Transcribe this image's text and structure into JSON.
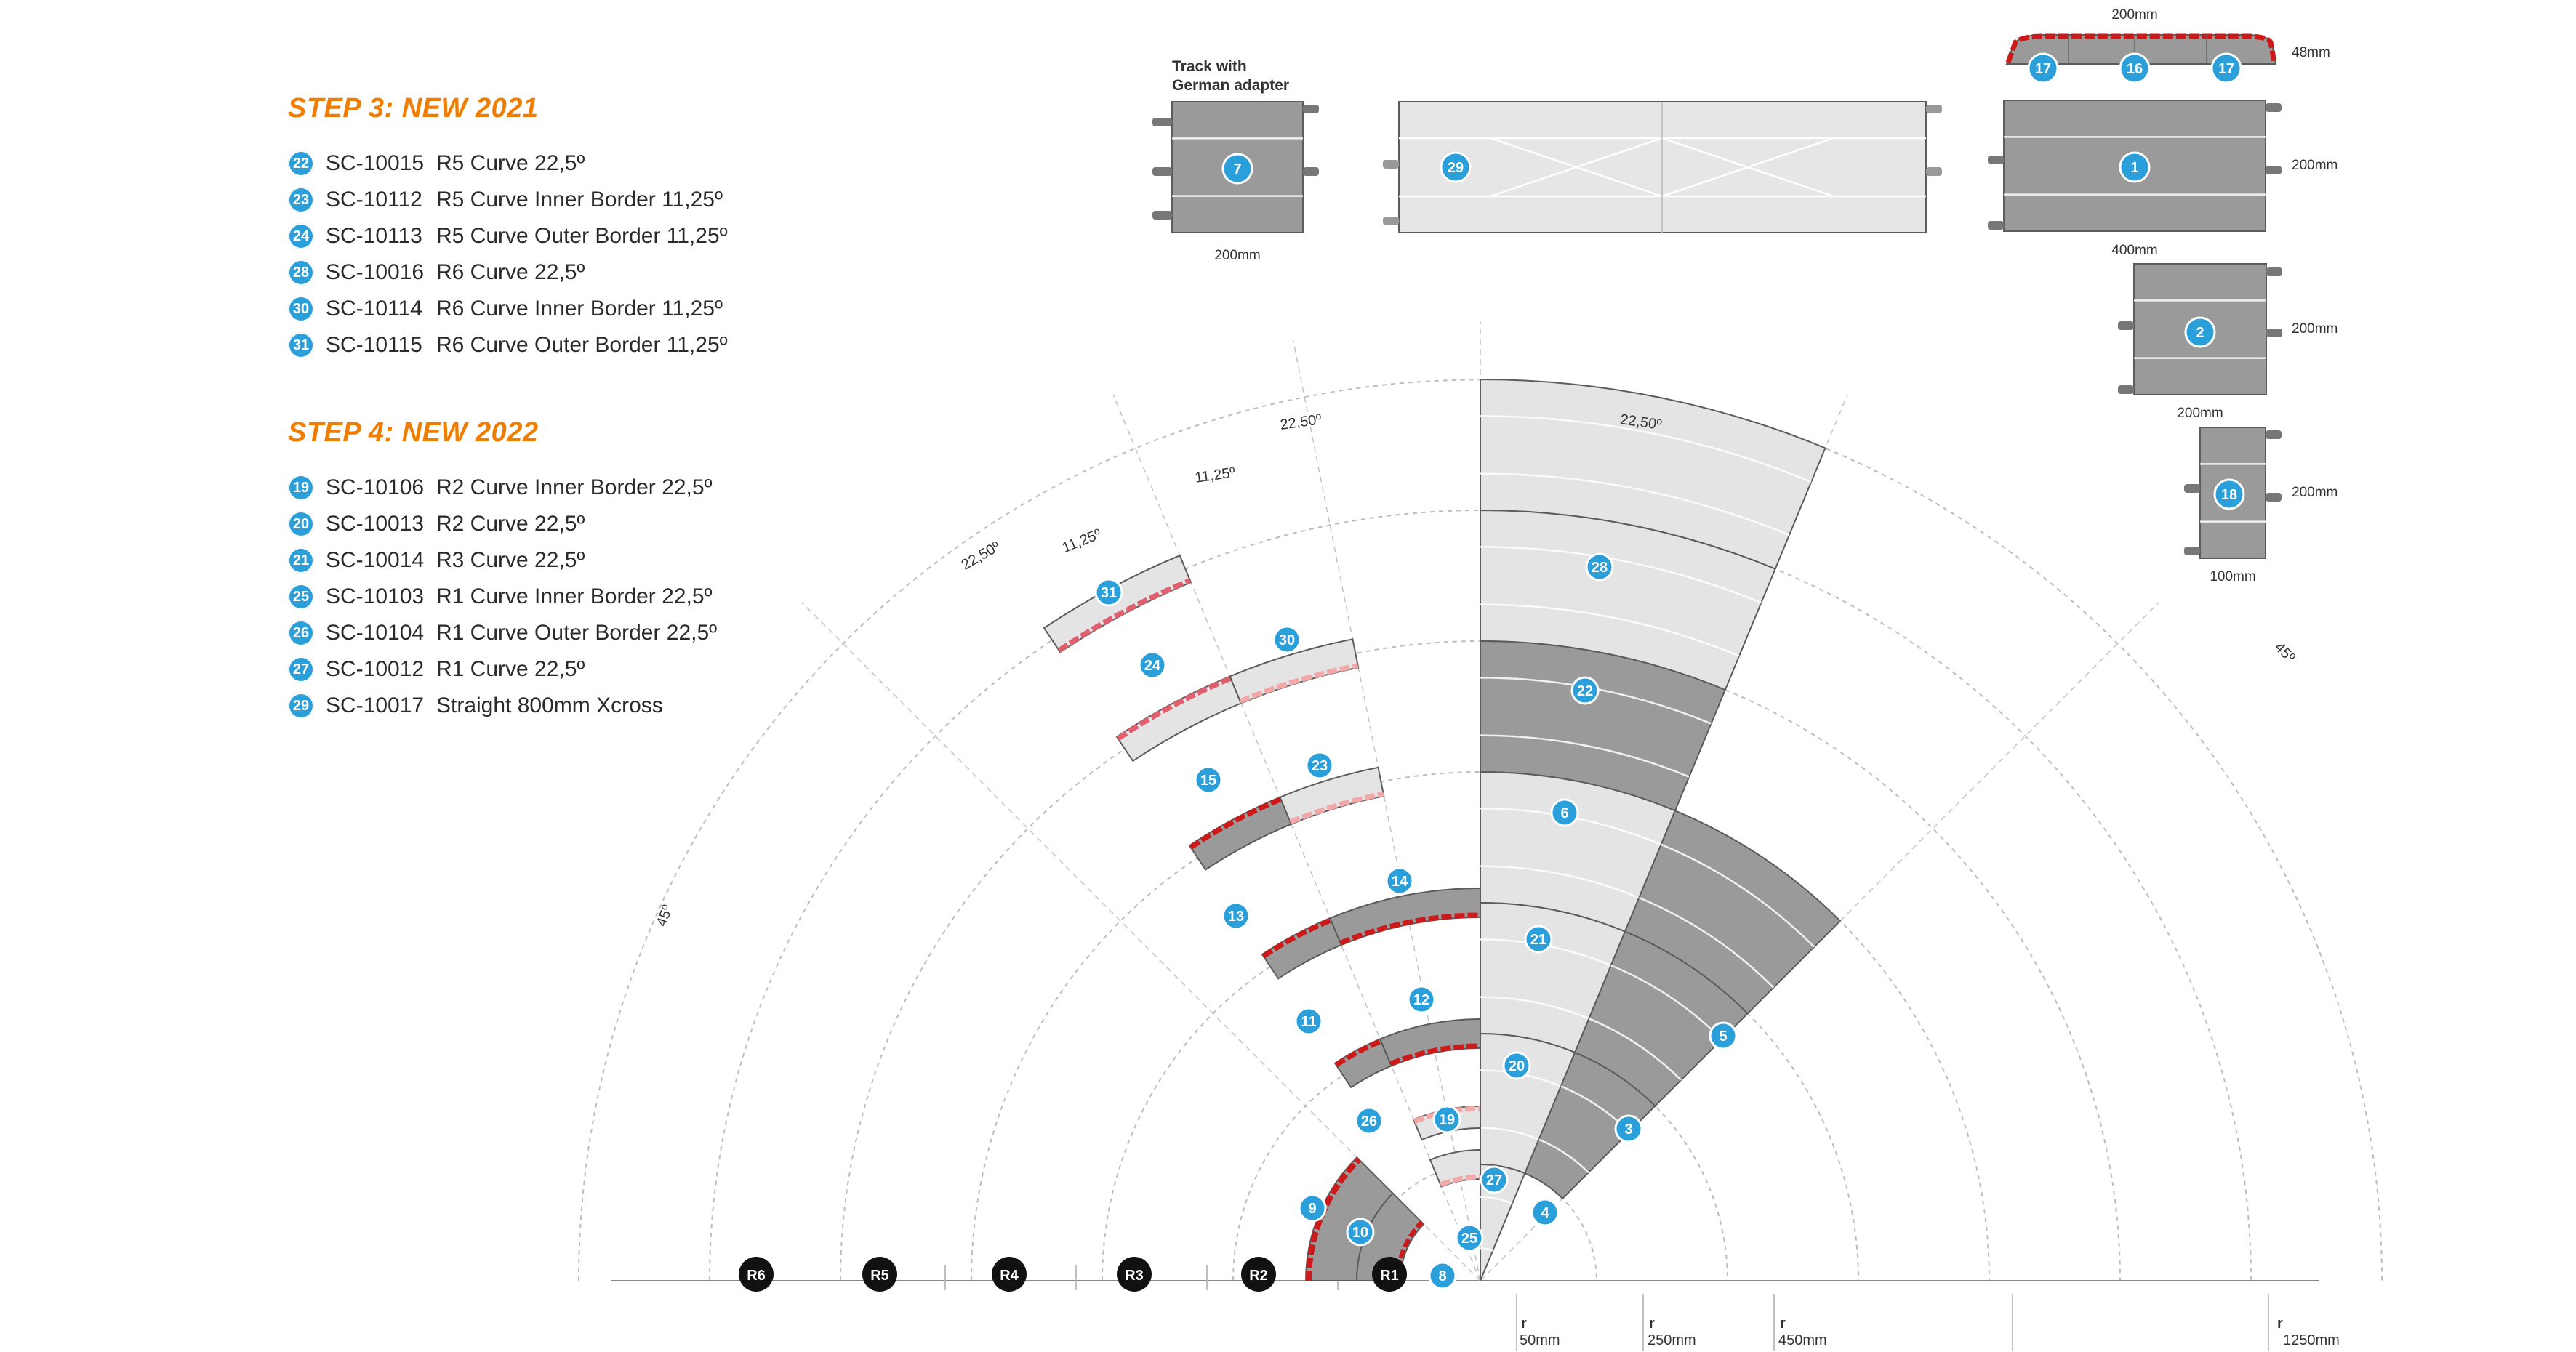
{
  "step3": {
    "title": "STEP 3: NEW 2021",
    "items": [
      {
        "badge": "22",
        "code": "SC-10015",
        "desc": "R5 Curve 22,5º"
      },
      {
        "badge": "23",
        "code": "SC-10112",
        "desc": "R5 Curve Inner Border 11,25º"
      },
      {
        "badge": "24",
        "code": "SC-10113",
        "desc": "R5 Curve Outer Border 11,25º"
      },
      {
        "badge": "28",
        "code": "SC-10016",
        "desc": "R6 Curve 22,5º"
      },
      {
        "badge": "30",
        "code": "SC-10114",
        "desc": "R6 Curve Inner Border 11,25º"
      },
      {
        "badge": "31",
        "code": "SC-10115",
        "desc": "R6 Curve Outer Border 11,25º"
      }
    ]
  },
  "step4": {
    "title": "STEP 4: NEW 2022",
    "items": [
      {
        "badge": "19",
        "code": "SC-10106",
        "desc": "R2 Curve Inner Border 22,5º"
      },
      {
        "badge": "20",
        "code": "SC-10013",
        "desc": "R2 Curve 22,5º"
      },
      {
        "badge": "21",
        "code": "SC-10014",
        "desc": "R3 Curve 22,5º"
      },
      {
        "badge": "25",
        "code": "SC-10103",
        "desc": "R1 Curve Inner Border 22,5º"
      },
      {
        "badge": "26",
        "code": "SC-10104",
        "desc": "R1 Curve Outer Border 22,5º"
      },
      {
        "badge": "27",
        "code": "SC-10012",
        "desc": "R1 Curve 22,5º"
      },
      {
        "badge": "29",
        "code": "SC-10017",
        "desc": "Straight 800mm Xcross"
      }
    ]
  },
  "straights": {
    "german_label_1": "Track with",
    "german_label_2": "German adapter",
    "piece7_badge": "7",
    "piece7_width": "200mm",
    "piece29_badge": "29",
    "border_top_width": "200mm",
    "border_height": "48mm",
    "border_badges": [
      "17",
      "16",
      "17"
    ],
    "piece1_badge": "1",
    "piece1_width": "400mm",
    "piece1_height": "200mm",
    "piece2_badge": "2",
    "piece2_width": "200mm",
    "piece2_height": "200mm",
    "piece18_badge": "18",
    "piece18_width": "100mm",
    "piece18_height": "200mm"
  },
  "fan": {
    "angle_labels": [
      "22,50º",
      "11,25º",
      "22,50º",
      "11,25º",
      "22,50º",
      "45º",
      "45º"
    ],
    "radius_labels": [
      "R6",
      "R5",
      "R4",
      "R3",
      "R2",
      "R1"
    ],
    "dimension_r": "r",
    "dimension_values": [
      "50mm",
      "250mm",
      "450mm",
      "1250mm"
    ],
    "piece_badges": [
      "28",
      "22",
      "6",
      "21",
      "5",
      "20",
      "3",
      "27",
      "4",
      "25",
      "8",
      "31",
      "24",
      "30",
      "15",
      "23",
      "13",
      "14",
      "11",
      "12",
      "26",
      "19",
      "9",
      "10"
    ]
  },
  "colors": {
    "accent": "#f07d00",
    "badge": "#2b9fd9",
    "track_dark": "#9a9a9a",
    "track_light": "#e4e4e4",
    "border_red": "#cc1a1a",
    "border_pink": "#f2a8a8",
    "radius_badge": "#111111"
  }
}
